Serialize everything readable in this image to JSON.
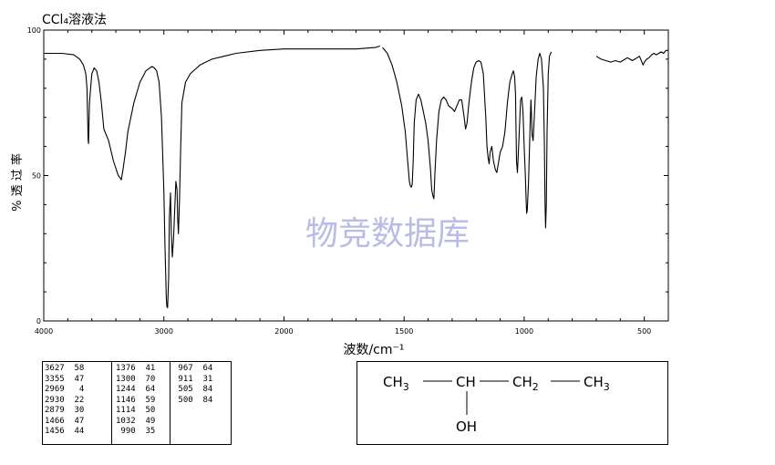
{
  "page": {
    "title": "CCl₄溶液法"
  },
  "chart_data": {
    "type": "line",
    "title": "",
    "xlabel": "波数/cm⁻¹",
    "ylabel": "% 透 过 率",
    "xlim": [
      4000,
      400
    ],
    "ylim": [
      0,
      100
    ],
    "x_ticks": [
      4000,
      3000,
      2000,
      1500,
      1000,
      500
    ],
    "y_ticks": [
      0,
      50,
      100
    ],
    "watermark": "物竞数据库",
    "segments": [
      {
        "x": [
          4000,
          3850,
          3750,
          3700,
          3670,
          3650,
          3640,
          3635,
          3630,
          3627,
          3620,
          3600,
          3580,
          3560,
          3540,
          3520,
          3500,
          3460,
          3420,
          3380,
          3360,
          3355,
          3340,
          3320,
          3300,
          3250,
          3200,
          3150,
          3100,
          3080,
          3060,
          3040,
          3020,
          3000,
          2990,
          2980,
          2975,
          2969,
          2960,
          2955,
          2945,
          2938,
          2930,
          2920,
          2910,
          2900,
          2890,
          2885,
          2879,
          2870,
          2860,
          2850,
          2820,
          2780,
          2700,
          2600,
          2500,
          2400,
          2200,
          2000,
          1800,
          1700,
          1620,
          1600
        ],
        "y": [
          92,
          92,
          91.5,
          90,
          88,
          85,
          80,
          70,
          62,
          61,
          75,
          85,
          87,
          86,
          82,
          75,
          66,
          62,
          55,
          50,
          49,
          48.5,
          52,
          58,
          65,
          75,
          82,
          86,
          87.5,
          87,
          86,
          82,
          70,
          45,
          25,
          8,
          5,
          4.5,
          15,
          35,
          44,
          30,
          22,
          28,
          38,
          48,
          45,
          35,
          30,
          42,
          60,
          75,
          82,
          85,
          88,
          90,
          91,
          92,
          93,
          93.5,
          93.5,
          93.5,
          94,
          94.5
        ]
      },
      {
        "x": [
          1590,
          1570,
          1550,
          1530,
          1510,
          1495,
          1485,
          1478,
          1474,
          1470,
          1466,
          1462,
          1458,
          1450,
          1440,
          1430,
          1420,
          1410,
          1400,
          1390,
          1385,
          1380,
          1376,
          1372,
          1365,
          1355,
          1345,
          1335,
          1325,
          1315,
          1300,
          1290,
          1280,
          1270,
          1260,
          1250,
          1244,
          1238,
          1230,
          1220,
          1210,
          1200,
          1190,
          1180,
          1170,
          1160,
          1155,
          1150,
          1146,
          1142,
          1135,
          1128,
          1120,
          1114,
          1108,
          1100,
          1090,
          1080,
          1070,
          1060,
          1050,
          1045,
          1040,
          1036,
          1032,
          1028,
          1022,
          1015,
          1010,
          1005,
          1000,
          995,
          992,
          990,
          987,
          982,
          975,
          972,
          970,
          967,
          963,
          958,
          950,
          942,
          935,
          928,
          920,
          916,
          913,
          911,
          908,
          905,
          900,
          895,
          890,
          887
        ],
        "y": [
          94,
          92,
          88,
          82,
          74,
          65,
          55,
          48,
          46.5,
          46,
          47,
          55,
          68,
          76,
          78,
          76,
          72,
          68,
          62,
          52,
          45,
          43,
          42,
          50,
          62,
          72,
          76,
          77,
          76,
          74,
          73,
          72,
          74,
          76,
          76,
          70,
          66,
          68,
          75,
          82,
          87,
          89,
          89.5,
          89,
          85,
          70,
          60,
          56,
          54,
          58,
          60,
          55,
          52,
          51,
          54,
          58,
          60,
          65,
          75,
          82,
          85,
          86,
          84,
          78,
          55,
          51,
          62,
          76,
          77,
          72,
          60,
          50,
          42,
          37,
          38,
          48,
          68,
          76,
          72,
          64,
          62,
          70,
          84,
          90,
          92,
          90,
          80,
          60,
          40,
          32,
          40,
          65,
          85,
          91,
          92,
          92.5
        ]
      },
      {
        "x": [
          700,
          690,
          680,
          660,
          640,
          620,
          600,
          590,
          580,
          570,
          560,
          550,
          540,
          530,
          520,
          510,
          505,
          500,
          490,
          480,
          470,
          460,
          450,
          440,
          430,
          420,
          410,
          400
        ],
        "y": [
          91,
          90.5,
          90,
          89.5,
          89,
          89.5,
          89,
          89.5,
          90,
          90.5,
          90,
          89.5,
          90,
          90.5,
          91,
          89,
          88,
          89,
          90,
          90.5,
          91.5,
          92,
          91.5,
          92,
          92.5,
          92,
          93,
          93
        ]
      }
    ]
  },
  "peak_table": {
    "columns": [
      [
        "3627  58",
        "3355  47",
        "2969   4",
        "2930  22",
        "2879  30",
        "1466  47",
        "1456  44"
      ],
      [
        "1376  41",
        "1300  70",
        "1244  64",
        "1146  59",
        "1114  50",
        "1032  49",
        " 990  35"
      ],
      [
        " 967  64",
        " 911  31",
        " 505  84",
        " 500  84"
      ]
    ]
  },
  "structure": {
    "ch3_left": "CH",
    "ch3_left_sub": "3",
    "ch": "CH",
    "ch2": "CH",
    "ch2_sub": "2",
    "ch3_right": "CH",
    "ch3_right_sub": "3",
    "oh": "OH"
  }
}
